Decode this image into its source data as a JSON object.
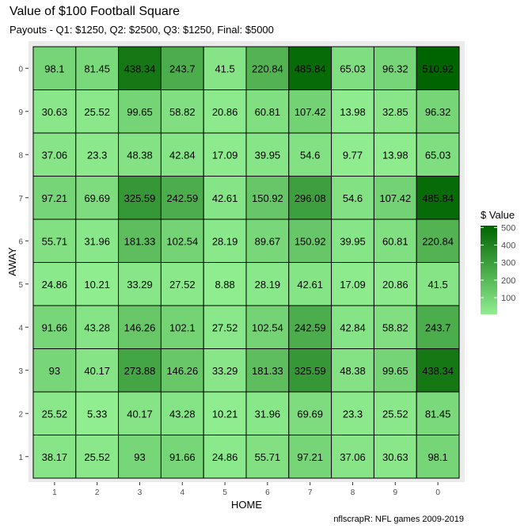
{
  "title": "Value of $100 Football Square",
  "subtitle": "Payouts - Q1: $1250, Q2: $2500, Q3: $1250, Final: $5000",
  "caption": "nflscrapR: NFL games 2009-2019",
  "colors": {
    "low": "#90ee90",
    "high": "#006400",
    "panel_bg": "#ebebeb",
    "tile_border": "#000000"
  },
  "chart_data": {
    "type": "heatmap",
    "xlabel": "HOME",
    "ylabel": "AWAY",
    "x_categories": [
      "1",
      "2",
      "3",
      "4",
      "5",
      "6",
      "7",
      "8",
      "9",
      "0"
    ],
    "y_categories": [
      "0",
      "9",
      "8",
      "7",
      "6",
      "5",
      "4",
      "3",
      "2",
      "1"
    ],
    "values": [
      [
        98.1,
        81.45,
        438.34,
        243.7,
        41.5,
        220.84,
        485.84,
        65.03,
        96.32,
        510.92
      ],
      [
        30.63,
        25.52,
        99.65,
        58.82,
        20.86,
        60.81,
        107.42,
        13.98,
        32.85,
        96.32
      ],
      [
        37.06,
        23.3,
        48.38,
        42.84,
        17.09,
        39.95,
        54.6,
        9.77,
        13.98,
        65.03
      ],
      [
        97.21,
        69.69,
        325.59,
        242.59,
        42.61,
        150.92,
        296.08,
        54.6,
        107.42,
        485.84
      ],
      [
        55.71,
        31.96,
        181.33,
        102.54,
        28.19,
        89.67,
        150.92,
        39.95,
        60.81,
        220.84
      ],
      [
        24.86,
        10.21,
        33.29,
        27.52,
        8.88,
        28.19,
        42.61,
        17.09,
        20.86,
        41.5
      ],
      [
        91.66,
        43.28,
        146.26,
        102.1,
        27.52,
        102.54,
        242.59,
        42.84,
        58.82,
        243.7
      ],
      [
        93,
        40.17,
        273.88,
        146.26,
        33.29,
        181.33,
        325.59,
        48.38,
        99.65,
        438.34
      ],
      [
        25.52,
        5.33,
        40.17,
        43.28,
        10.21,
        31.96,
        69.69,
        23.3,
        25.52,
        81.45
      ],
      [
        38.17,
        25.52,
        93,
        91.66,
        24.86,
        55.71,
        97.21,
        37.06,
        30.63,
        98.1
      ]
    ],
    "legend": {
      "title": "$ Value",
      "ticks": [
        100,
        200,
        300,
        400,
        500
      ],
      "range": [
        5.33,
        510.92
      ],
      "placement": "right"
    }
  }
}
